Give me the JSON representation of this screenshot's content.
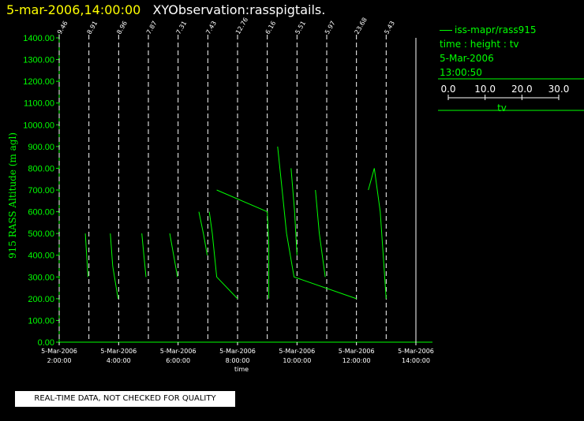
{
  "header": {
    "date_time": "5-mar-2006,14:00:00",
    "observation": "XYObservation:rasspigtails."
  },
  "info_panel": {
    "series_name": "iss-mapr/rass915",
    "axes_desc": "time : height : tv",
    "date": "5-Mar-2006",
    "time": "13:00:50",
    "scale_ticks": [
      "0.0",
      "10.0",
      "20.0",
      "30.0"
    ],
    "scale_label": "tv"
  },
  "footer": {
    "qc_notice": "REAL-TIME DATA, NOT CHECKED FOR QUALITY"
  },
  "colors": {
    "data": "#00ff00",
    "axis": "#00ff00",
    "title_date": "#ffff00",
    "background": "#000000"
  },
  "chart_data": {
    "type": "line",
    "title": "",
    "xlabel": "time",
    "ylabel": "915 RASS Altitude (m agl)",
    "xlim": [
      2,
      15.2
    ],
    "ylim": [
      0,
      1400
    ],
    "x_ticks": [
      {
        "x": 2,
        "label": [
          "5-Mar-2006",
          "2:00:00"
        ]
      },
      {
        "x": 4,
        "label": [
          "5-Mar-2006",
          "4:00:00"
        ]
      },
      {
        "x": 6,
        "label": [
          "5-Mar-2006",
          "6:00:00"
        ]
      },
      {
        "x": 8,
        "label": [
          "5-Mar-2006",
          "8:00:00"
        ]
      },
      {
        "x": 10,
        "label": [
          "5-Mar-2006",
          "10:00:00"
        ]
      },
      {
        "x": 12,
        "label": [
          "5-Mar-2006",
          "12:00:00"
        ]
      },
      {
        "x": 14,
        "label": [
          "5-Mar-2006",
          "14:00:00"
        ]
      }
    ],
    "y_ticks": [
      0,
      100,
      200,
      300,
      400,
      500,
      600,
      700,
      800,
      900,
      1000,
      1100,
      1200,
      1300,
      1400
    ],
    "y_tick_format": "0.00",
    "profile_baselines": [
      {
        "time": 2.0,
        "label": "9.46"
      },
      {
        "time": 3.0,
        "label": "8.91"
      },
      {
        "time": 4.0,
        "label": "8.96"
      },
      {
        "time": 5.0,
        "label": "7.87"
      },
      {
        "time": 6.0,
        "label": "7.31"
      },
      {
        "time": 7.0,
        "label": "7.43"
      },
      {
        "time": 8.0,
        "label": "12.76"
      },
      {
        "time": 9.0,
        "label": "6.16"
      },
      {
        "time": 10.0,
        "label": "5.51"
      },
      {
        "time": 11.0,
        "label": "5.97"
      },
      {
        "time": 12.0,
        "label": "23.68"
      },
      {
        "time": 13.0,
        "label": "5.43"
      }
    ],
    "series": [
      {
        "points": [
          [
            2.88,
            500
          ],
          [
            2.97,
            300
          ]
        ]
      },
      {
        "points": [
          [
            3.72,
            500
          ],
          [
            3.8,
            350
          ],
          [
            3.98,
            200
          ]
        ]
      },
      {
        "points": [
          [
            4.78,
            500
          ],
          [
            4.85,
            400
          ],
          [
            4.92,
            300
          ]
        ]
      },
      {
        "points": [
          [
            5.72,
            500
          ],
          [
            5.85,
            400
          ],
          [
            5.98,
            300
          ]
        ]
      },
      {
        "points": [
          [
            6.7,
            600
          ],
          [
            6.85,
            500
          ],
          [
            6.98,
            400
          ]
        ]
      },
      {
        "points": [
          [
            7.05,
            600
          ],
          [
            7.15,
            500
          ],
          [
            7.3,
            300
          ],
          [
            8.0,
            200
          ]
        ]
      },
      {
        "points": [
          [
            7.3,
            700
          ],
          [
            9.0,
            600
          ],
          [
            9.05,
            450
          ],
          [
            9.05,
            200
          ]
        ]
      },
      {
        "points": [
          [
            9.35,
            900
          ],
          [
            9.5,
            700
          ],
          [
            9.65,
            500
          ],
          [
            9.9,
            300
          ],
          [
            12.0,
            200
          ]
        ]
      },
      {
        "points": [
          [
            9.8,
            800
          ],
          [
            9.92,
            600
          ],
          [
            10.0,
            400
          ]
        ]
      },
      {
        "points": [
          [
            10.62,
            700
          ],
          [
            10.75,
            500
          ],
          [
            10.95,
            300
          ]
        ]
      },
      {
        "points": [
          [
            12.4,
            700
          ],
          [
            12.6,
            800
          ],
          [
            12.8,
            600
          ],
          [
            12.9,
            400
          ],
          [
            13.0,
            200
          ]
        ]
      }
    ]
  }
}
